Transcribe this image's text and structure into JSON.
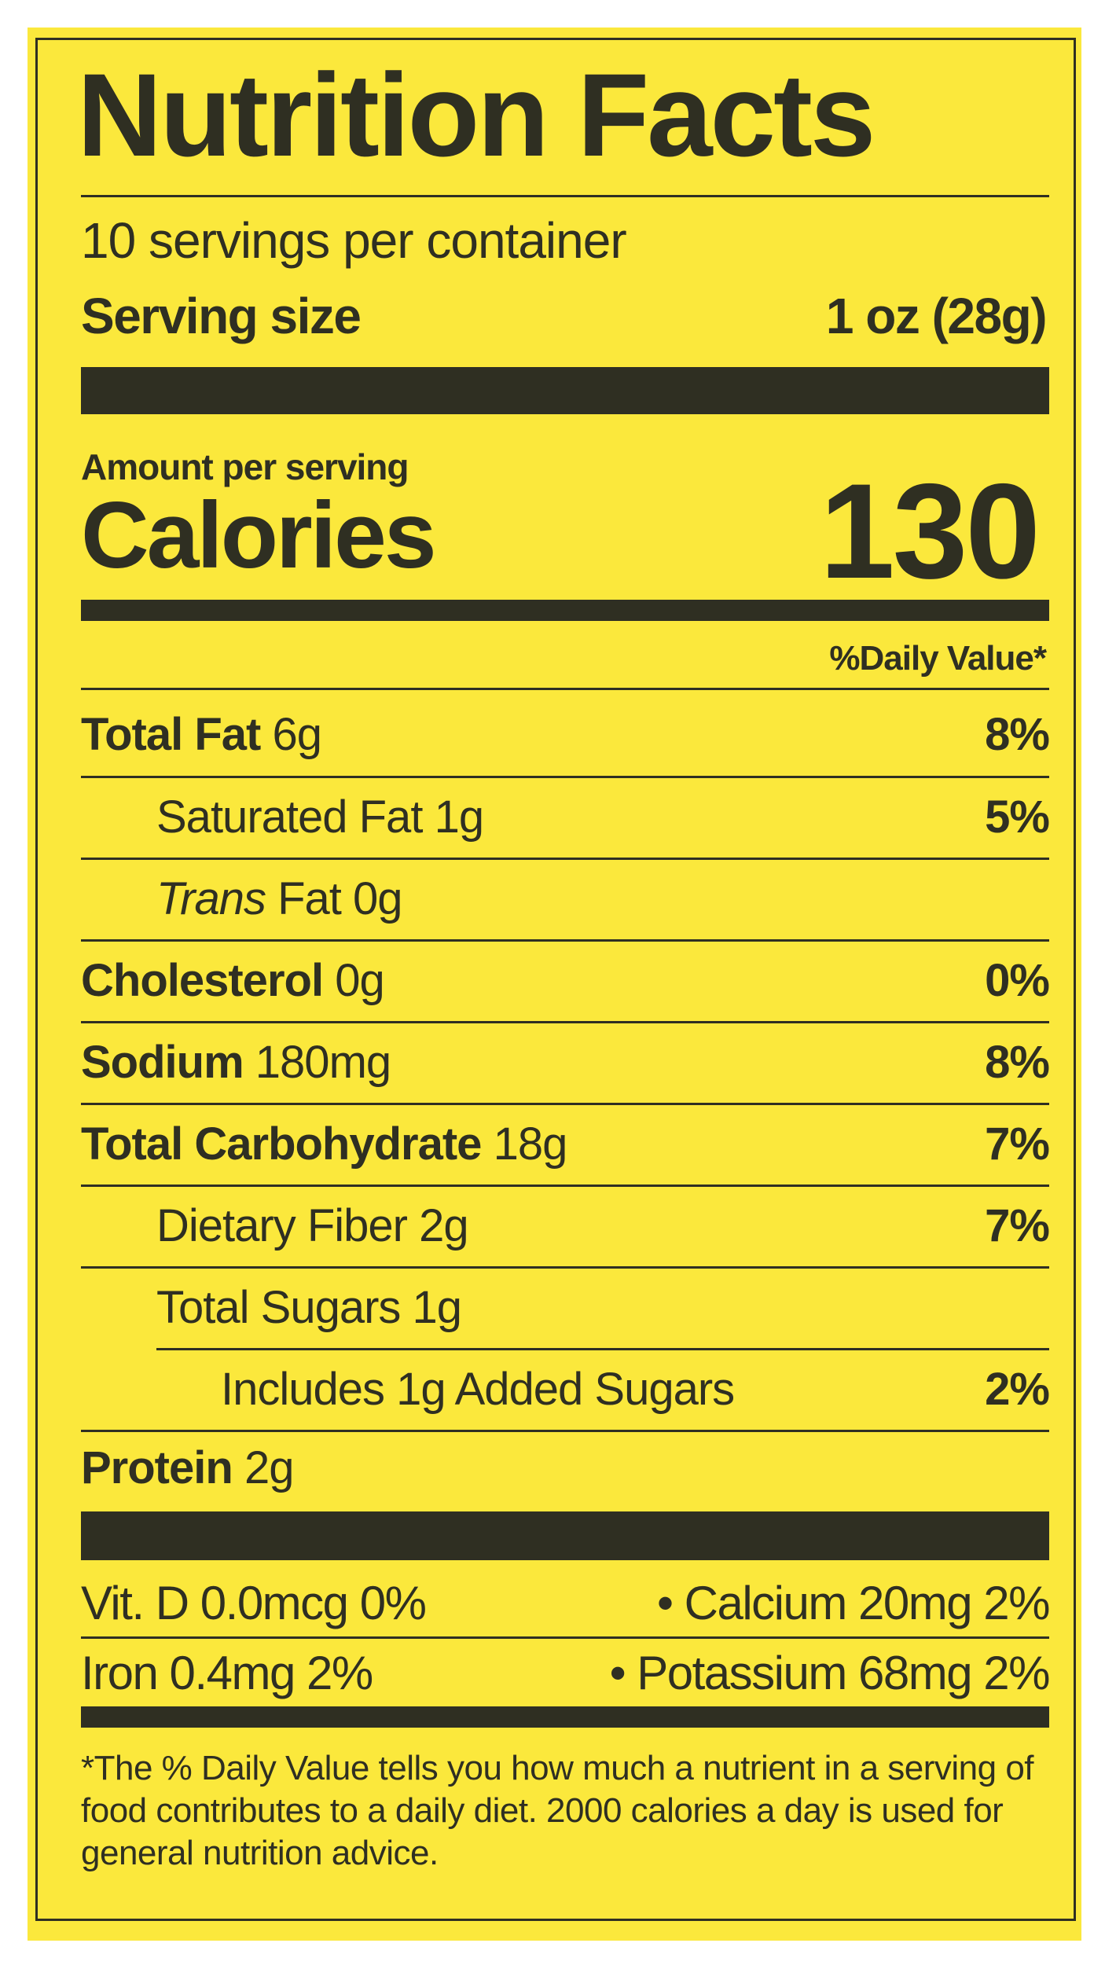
{
  "title": "Nutrition Facts",
  "servings_per_container": "10 servings per container",
  "serving_size_label": "Serving size",
  "serving_size_value": "1 oz (28g)",
  "amount_per_serving": "Amount per serving",
  "calories_label": "Calories",
  "calories_value": "130",
  "daily_value_header": "%Daily Value*",
  "nutrients": [
    {
      "name": "Total Fat",
      "amount": "6g",
      "dv": "8%"
    },
    {
      "name": "Saturated Fat",
      "amount": "1g",
      "dv": "5%"
    },
    {
      "name_italic": "Trans",
      "name": "Fat",
      "amount": "0g",
      "dv": ""
    },
    {
      "name": "Cholesterol",
      "amount": "0g",
      "dv": "0%"
    },
    {
      "name": "Sodium",
      "amount": "180mg",
      "dv": "8%"
    },
    {
      "name": "Total Carbohydrate",
      "amount": "18g",
      "dv": "7%"
    },
    {
      "name": "Dietary Fiber",
      "amount": "2g",
      "dv": "7%"
    },
    {
      "name": "Total Sugars",
      "amount": "1g",
      "dv": ""
    },
    {
      "name": "Includes 1g Added Sugars",
      "amount": "",
      "dv": "2%"
    },
    {
      "name": "Protein",
      "amount": "2g",
      "dv": ""
    }
  ],
  "vitamins": [
    {
      "left": "Vit. D 0.0mcg 0%",
      "right": "• Calcium 20mg 2%"
    },
    {
      "left": "Iron 0.4mg 2%",
      "right": "• Potassium 68mg 2%"
    }
  ],
  "footnote": "*The % Daily Value tells you how much a nutrient in a serving of food contributes to a daily diet. 2000 calories a day is used for general nutrition advice.",
  "colors": {
    "background": "#fbe83c",
    "ink": "#2f2f22"
  }
}
